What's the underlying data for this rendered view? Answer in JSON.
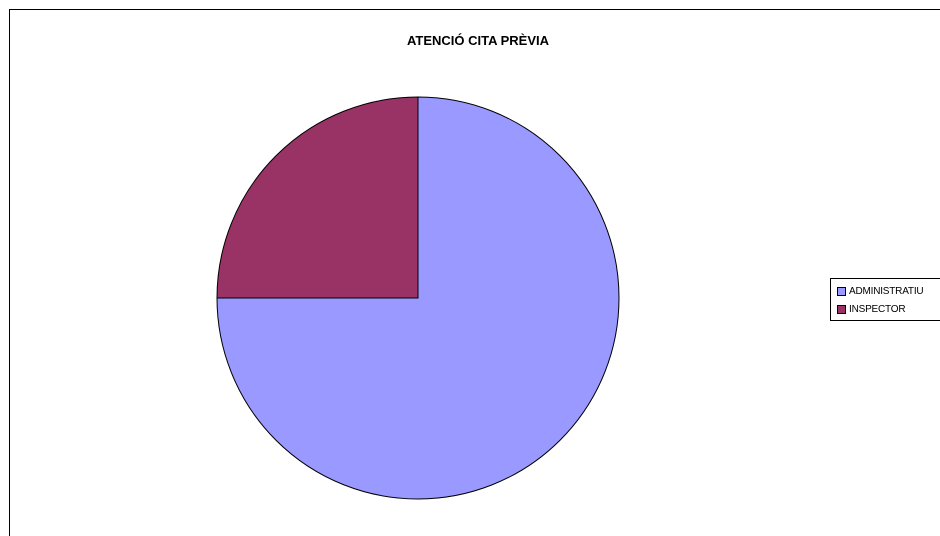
{
  "chart_data": {
    "type": "pie",
    "title": "ATENCIÓ CITA PRÈVIA",
    "categories": [
      "ADMINISTRATIU",
      "INSPECTOR"
    ],
    "values": [
      75,
      25
    ],
    "colors": [
      "#9999ff",
      "#993366"
    ],
    "legend_position": "right",
    "start_angle_deg": 0,
    "direction": "clockwise"
  }
}
